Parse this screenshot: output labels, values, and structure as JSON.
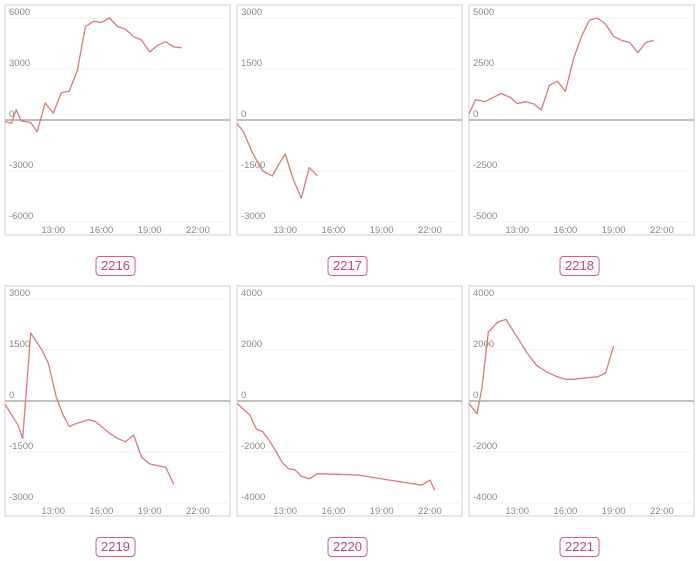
{
  "chart_data": [
    {
      "type": "line",
      "label": "2216",
      "ylim": [
        -6000,
        6000
      ],
      "y_ticks": [
        "6000",
        "3000",
        "0",
        "-3000",
        "-6000"
      ],
      "x_ticks": [
        "13:00",
        "16:00",
        "19:00",
        "22:00"
      ],
      "x_tick_values": [
        13,
        16,
        19,
        22
      ],
      "x_range": [
        10,
        24
      ],
      "x": [
        10.0,
        10.4,
        10.7,
        11.0,
        11.6,
        12.0,
        12.5,
        13.0,
        13.5,
        14.0,
        14.5,
        15.0,
        15.5,
        16.0,
        16.5,
        17.0,
        17.5,
        18.0,
        18.5,
        19.0,
        19.5,
        20.0,
        20.5,
        21.0
      ],
      "values": [
        -80,
        -200,
        600,
        -50,
        -150,
        -700,
        1000,
        400,
        1600,
        1700,
        2900,
        5500,
        5800,
        5750,
        6000,
        5500,
        5350,
        4900,
        4700,
        4000,
        4400,
        4600,
        4300,
        4250
      ],
      "color": "#e07878",
      "grid": true
    },
    {
      "type": "line",
      "label": "2217",
      "ylim": [
        -3000,
        3000
      ],
      "y_ticks": [
        "3000",
        "1500",
        "0",
        "-1500",
        "-3000"
      ],
      "x_ticks": [
        "13:00",
        "16:00",
        "19:00",
        "22:00"
      ],
      "x_tick_values": [
        13,
        16,
        19,
        22
      ],
      "x_range": [
        10,
        24
      ],
      "x": [
        10.0,
        10.4,
        11.0,
        11.6,
        12.2,
        12.6,
        13.0,
        13.5,
        14.0,
        14.5,
        15.0
      ],
      "values": [
        -100,
        -350,
        -1000,
        -1500,
        -1650,
        -1300,
        -1000,
        -1750,
        -2300,
        -1400,
        -1650
      ],
      "color": "#e07878",
      "grid": true
    },
    {
      "type": "line",
      "label": "2218",
      "ylim": [
        -5000,
        5000
      ],
      "y_ticks": [
        "5000",
        "2500",
        "0",
        "-2500",
        "-5000"
      ],
      "x_ticks": [
        "13:00",
        "16:00",
        "19:00",
        "22:00"
      ],
      "x_tick_values": [
        13,
        16,
        19,
        22
      ],
      "x_range": [
        10,
        24
      ],
      "x": [
        10.0,
        10.4,
        11.0,
        11.5,
        12.0,
        12.6,
        13.0,
        13.5,
        14.0,
        14.5,
        15.0,
        15.5,
        16.0,
        16.5,
        17.0,
        17.5,
        18.0,
        18.5,
        19.0,
        19.5,
        20.0,
        20.5,
        21.0,
        21.5
      ],
      "values": [
        300,
        1000,
        900,
        1100,
        1300,
        1100,
        800,
        900,
        800,
        500,
        1700,
        1900,
        1400,
        3000,
        4100,
        4900,
        5000,
        4700,
        4100,
        3900,
        3800,
        3300,
        3800,
        3900
      ],
      "color": "#e07878",
      "grid": true
    },
    {
      "type": "line",
      "label": "2219",
      "ylim": [
        -3000,
        3000
      ],
      "y_ticks": [
        "3000",
        "1500",
        "0",
        "-1500",
        "-3000"
      ],
      "x_ticks": [
        "13:00",
        "16:00",
        "19:00",
        "22:00"
      ],
      "x_tick_values": [
        13,
        16,
        19,
        22
      ],
      "x_range": [
        10,
        24
      ],
      "x": [
        10.0,
        10.8,
        11.1,
        11.6,
        12.3,
        12.7,
        13.2,
        13.6,
        14.0,
        14.5,
        15.2,
        15.6,
        16.0,
        16.5,
        17.0,
        17.5,
        18.0,
        18.5,
        19.0,
        19.5,
        20.0,
        20.5
      ],
      "values": [
        -100,
        -700,
        -1100,
        2000,
        1500,
        1100,
        100,
        -400,
        -750,
        -650,
        -550,
        -600,
        -750,
        -950,
        -1100,
        -1200,
        -1000,
        -1650,
        -1850,
        -1900,
        -1950,
        -2450
      ],
      "color": "#e07878",
      "grid": true
    },
    {
      "type": "line",
      "label": "2220",
      "ylim": [
        -4000,
        4000
      ],
      "y_ticks": [
        "4000",
        "2000",
        "0",
        "-2000",
        "-4000"
      ],
      "x_ticks": [
        "13:00",
        "16:00",
        "19:00",
        "22:00"
      ],
      "x_tick_values": [
        13,
        16,
        19,
        22
      ],
      "x_range": [
        10,
        24
      ],
      "x": [
        10.0,
        10.8,
        11.2,
        11.6,
        12.0,
        12.4,
        12.8,
        13.2,
        13.6,
        14.0,
        14.5,
        15.0,
        17.5,
        21.5,
        22.0,
        22.3
      ],
      "values": [
        -100,
        -550,
        -1100,
        -1200,
        -1550,
        -1950,
        -2400,
        -2650,
        -2700,
        -2950,
        -3050,
        -2850,
        -2900,
        -3300,
        -3100,
        -3500
      ],
      "color": "#e07878",
      "grid": true
    },
    {
      "type": "line",
      "label": "2221",
      "ylim": [
        -4000,
        4000
      ],
      "y_ticks": [
        "4000",
        "2000",
        "0",
        "-2000",
        "-4000"
      ],
      "x_ticks": [
        "13:00",
        "16:00",
        "19:00",
        "22:00"
      ],
      "x_tick_values": [
        13,
        16,
        19,
        22
      ],
      "x_range": [
        10,
        24
      ],
      "x": [
        10.0,
        10.5,
        10.8,
        11.2,
        11.8,
        12.3,
        13.0,
        13.6,
        14.2,
        14.8,
        15.5,
        16.0,
        16.5,
        17.2,
        18.0,
        18.5,
        19.0
      ],
      "values": [
        -100,
        -500,
        500,
        2700,
        3100,
        3200,
        2500,
        1900,
        1400,
        1150,
        950,
        850,
        850,
        900,
        950,
        1100,
        2150
      ],
      "color": "#e07878",
      "grid": true
    }
  ]
}
